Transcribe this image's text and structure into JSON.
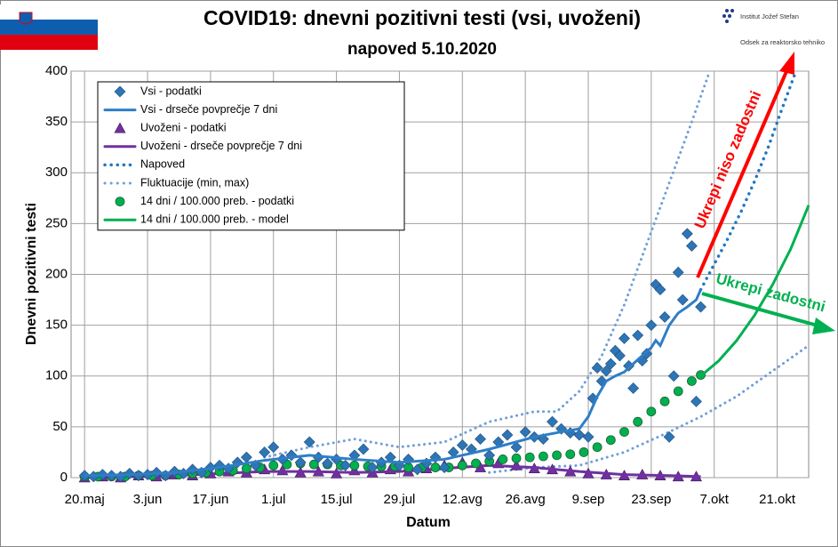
{
  "header": {
    "org1": "Institut Jožef Stefan",
    "org2": "Odsek za reaktorsko tehniko"
  },
  "chart_data": {
    "type": "line",
    "title": "COVID19: dnevni pozitivni testi (vsi, uvoženi)",
    "subtitle": "napoved 5.10.2020",
    "x_label": "Datum",
    "y_label": "Dnevni pozitivni testi",
    "xlim": [
      -3,
      161
    ],
    "ylim": [
      0,
      400
    ],
    "xticks": [
      {
        "value": 0,
        "label": "20.maj"
      },
      {
        "value": 14,
        "label": "3.jun"
      },
      {
        "value": 28,
        "label": "17.jun"
      },
      {
        "value": 42,
        "label": "1.jul"
      },
      {
        "value": 56,
        "label": "15.jul"
      },
      {
        "value": 70,
        "label": "29.jul"
      },
      {
        "value": 84,
        "label": "12.avg"
      },
      {
        "value": 98,
        "label": "26.avg"
      },
      {
        "value": 112,
        "label": "9.sep"
      },
      {
        "value": 126,
        "label": "23.sep"
      },
      {
        "value": 140,
        "label": "7.okt"
      },
      {
        "value": 154,
        "label": "21.okt"
      }
    ],
    "yticks": [
      0,
      50,
      100,
      150,
      200,
      250,
      300,
      350,
      400
    ],
    "grid": true,
    "series": [
      {
        "name": "Vsi - podatki",
        "color": "#2e75b6",
        "style": "marker",
        "marker": "diamond",
        "x": [
          0,
          2,
          4,
          6,
          8,
          10,
          12,
          14,
          16,
          18,
          20,
          22,
          24,
          26,
          28,
          30,
          32,
          34,
          36,
          38,
          40,
          42,
          44,
          46,
          48,
          50,
          52,
          54,
          56,
          58,
          60,
          62,
          64,
          66,
          68,
          70,
          72,
          74,
          76,
          78,
          80,
          82,
          84,
          86,
          88,
          90,
          92,
          94,
          96,
          98,
          100,
          102,
          104,
          106,
          108,
          110,
          112,
          113,
          114,
          115,
          116,
          117,
          118,
          119,
          120,
          121,
          122,
          123,
          124,
          125,
          126,
          127,
          128,
          129,
          130,
          131,
          132,
          133,
          134,
          135,
          136,
          137
        ],
        "values": [
          2,
          1,
          3,
          2,
          1,
          4,
          2,
          3,
          5,
          2,
          6,
          4,
          8,
          5,
          10,
          12,
          9,
          15,
          20,
          12,
          25,
          30,
          18,
          22,
          15,
          35,
          20,
          14,
          18,
          12,
          22,
          28,
          10,
          15,
          20,
          12,
          18,
          8,
          14,
          20,
          10,
          25,
          32,
          28,
          38,
          22,
          35,
          42,
          30,
          45,
          40,
          38,
          55,
          48,
          44,
          42,
          40,
          78,
          108,
          95,
          105,
          112,
          125,
          120,
          137,
          110,
          88,
          140,
          115,
          122,
          150,
          190,
          185,
          158,
          40,
          100,
          202,
          175,
          240,
          228,
          75,
          168
        ]
      },
      {
        "name": "Vsi - drseče povprečje 7 dni",
        "color": "#2e7ec8",
        "style": "line",
        "width": 3,
        "x": [
          0,
          10,
          20,
          30,
          40,
          50,
          60,
          70,
          80,
          90,
          100,
          106,
          110,
          112,
          114,
          116,
          118,
          120,
          122,
          124,
          126,
          127,
          128,
          130,
          132,
          134,
          136,
          137
        ],
        "values": [
          2,
          3,
          5,
          10,
          17,
          22,
          18,
          15,
          18,
          28,
          40,
          45,
          48,
          60,
          80,
          95,
          100,
          104,
          112,
          120,
          128,
          135,
          130,
          150,
          162,
          168,
          175,
          185
        ]
      },
      {
        "name": "Uvoženi - podatki",
        "color": "#7030a0",
        "style": "marker",
        "marker": "triangle",
        "x": [
          0,
          4,
          8,
          12,
          16,
          20,
          24,
          28,
          32,
          36,
          40,
          44,
          48,
          52,
          56,
          60,
          64,
          68,
          72,
          76,
          80,
          84,
          88,
          92,
          96,
          100,
          104,
          108,
          112,
          116,
          120,
          124,
          128,
          132,
          136
        ],
        "values": [
          0,
          1,
          0,
          2,
          1,
          3,
          2,
          4,
          6,
          5,
          8,
          7,
          5,
          6,
          4,
          7,
          5,
          8,
          6,
          9,
          12,
          15,
          10,
          14,
          12,
          9,
          8,
          6,
          4,
          3,
          2,
          3,
          2,
          1,
          1
        ]
      },
      {
        "name": "Uvoženi - drseče povprečje 7 dni",
        "color": "#7030a0",
        "style": "line",
        "width": 3,
        "x": [
          0,
          10,
          20,
          30,
          40,
          50,
          60,
          70,
          80,
          90,
          100,
          110,
          120,
          130,
          137
        ],
        "values": [
          0,
          1,
          2,
          4,
          6,
          6,
          5,
          6,
          9,
          12,
          10,
          6,
          3,
          2,
          1
        ]
      },
      {
        "name": "Napoved",
        "color": "#1f77c4",
        "style": "dotted",
        "width": 3.5,
        "x": [
          137,
          140,
          143,
          146,
          149,
          152,
          155,
          158
        ],
        "values": [
          185,
          210,
          235,
          262,
          292,
          325,
          362,
          398
        ]
      },
      {
        "name": "Fluktuacije (min, max)",
        "color": "#6f9fd8",
        "style": "band",
        "x_max": [
          40,
          50,
          60,
          70,
          80,
          90,
          100,
          105,
          110,
          115,
          120,
          125,
          130,
          135,
          139
        ],
        "max": [
          20,
          30,
          38,
          30,
          35,
          55,
          65,
          65,
          85,
          120,
          170,
          230,
          290,
          350,
          400
        ],
        "x_min": [
          90,
          100,
          110,
          120,
          130,
          137,
          145,
          153,
          161
        ],
        "min": [
          5,
          10,
          12,
          25,
          45,
          60,
          80,
          105,
          130
        ]
      },
      {
        "name": "14 dni / 100.000 preb. - podatki",
        "color": "#00b050",
        "style": "marker",
        "marker": "circle",
        "x": [
          0,
          3,
          6,
          9,
          12,
          15,
          18,
          21,
          24,
          27,
          30,
          33,
          36,
          39,
          42,
          45,
          48,
          51,
          54,
          57,
          60,
          63,
          66,
          69,
          72,
          75,
          78,
          81,
          84,
          87,
          90,
          93,
          96,
          99,
          102,
          105,
          108,
          111,
          114,
          117,
          120,
          123,
          126,
          129,
          132,
          135,
          137
        ],
        "values": [
          1,
          1,
          1,
          1,
          2,
          2,
          2,
          3,
          4,
          5,
          6,
          7,
          9,
          10,
          12,
          13,
          14,
          13,
          13,
          12,
          12,
          11,
          11,
          11,
          10,
          10,
          10,
          10,
          12,
          14,
          16,
          18,
          19,
          20,
          21,
          22,
          23,
          25,
          30,
          37,
          45,
          55,
          65,
          75,
          85,
          95,
          101
        ]
      },
      {
        "name": "14 dni / 100.000 preb. - model",
        "color": "#00b050",
        "style": "line",
        "width": 3,
        "x": [
          137,
          141,
          145,
          149,
          153,
          157,
          161
        ],
        "values": [
          100,
          115,
          135,
          160,
          190,
          225,
          268
        ]
      }
    ],
    "annotations": [
      "Ukrepi niso zadostni",
      "Ukrepi zadostni"
    ]
  }
}
